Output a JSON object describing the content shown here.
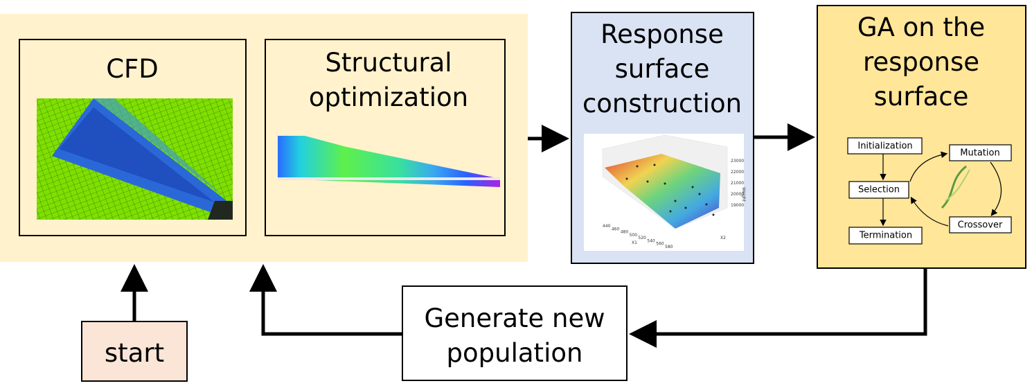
{
  "nodes": {
    "cfd": {
      "title": "CFD"
    },
    "structural": {
      "title": [
        "Structural",
        "optimization"
      ]
    },
    "response": {
      "title": [
        "Response",
        "surface",
        "construction"
      ],
      "plot": {
        "x1_label": "X1",
        "x2_label": "X2",
        "z_label": "Weight",
        "x1_ticks": [
          "440",
          "460",
          "480",
          "500",
          "520",
          "540",
          "560",
          "580"
        ],
        "x2_ticks": [
          "950",
          "1050",
          "1100",
          "1150",
          "1200",
          "1250"
        ],
        "z_ticks": [
          "23000",
          "22000",
          "21000",
          "20000",
          "19000"
        ]
      }
    },
    "ga": {
      "title": [
        "GA on the",
        "response",
        "surface"
      ],
      "steps": {
        "initialization": "Initialization",
        "selection": "Selection",
        "termination": "Termination",
        "mutation": "Mutation",
        "crossover": "Crossover"
      }
    },
    "start": {
      "title": "start"
    },
    "generate": {
      "title": [
        "Generate new",
        "population"
      ]
    }
  }
}
